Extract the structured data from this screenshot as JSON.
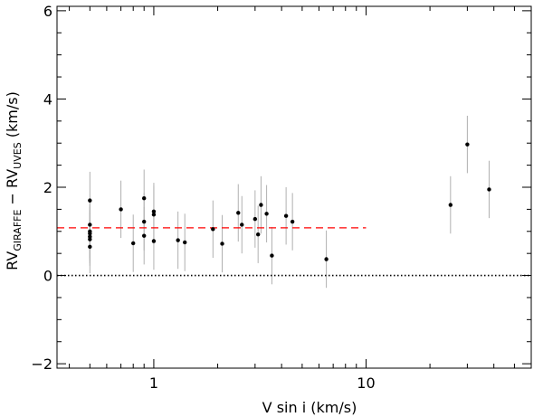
{
  "chart_data": {
    "type": "scatter",
    "x_scale": "log",
    "xlim": [
      0.35,
      60
    ],
    "ylim": [
      -2.1,
      6.1
    ],
    "xlabel": "V sin i (km/s)",
    "ylabel": {
      "main1": "RV",
      "sub1": "GIRAFFE",
      "sep": " − RV",
      "sub2": "UVES",
      "unit": " (km/s)"
    },
    "x_ticks_major": [
      1,
      10
    ],
    "x_tick_labels": [
      "1",
      "10"
    ],
    "x_ticks_minor": [
      0.4,
      0.5,
      0.6,
      0.7,
      0.8,
      0.9,
      2,
      3,
      4,
      5,
      6,
      7,
      8,
      9,
      20,
      30,
      40,
      50
    ],
    "y_ticks_major": [
      -2,
      0,
      2,
      4,
      6
    ],
    "y_tick_labels": [
      "−2",
      "0",
      "2",
      "4",
      "6"
    ],
    "y_ticks_minor": [
      -1.5,
      -1,
      -0.5,
      0.5,
      1,
      1.5,
      2.5,
      3,
      3.5,
      4.5,
      5,
      5.5
    ],
    "points": [
      {
        "x": 0.5,
        "y": 1.7,
        "err": 0.65
      },
      {
        "x": 0.5,
        "y": 1.15,
        "err": 0.6
      },
      {
        "x": 0.5,
        "y": 1.0,
        "err": 0.6
      },
      {
        "x": 0.5,
        "y": 0.95,
        "err": 0.6
      },
      {
        "x": 0.5,
        "y": 0.88,
        "err": 0.6
      },
      {
        "x": 0.5,
        "y": 0.82,
        "err": 0.6
      },
      {
        "x": 0.5,
        "y": 0.65,
        "err": 0.6
      },
      {
        "x": 0.7,
        "y": 1.5,
        "err": 0.65
      },
      {
        "x": 0.8,
        "y": 0.73,
        "err": 0.65
      },
      {
        "x": 0.9,
        "y": 1.75,
        "err": 0.65
      },
      {
        "x": 0.9,
        "y": 1.22,
        "err": 0.65
      },
      {
        "x": 0.9,
        "y": 0.9,
        "err": 0.65
      },
      {
        "x": 1.0,
        "y": 1.45,
        "err": 0.65
      },
      {
        "x": 1.0,
        "y": 1.38,
        "err": 0.65
      },
      {
        "x": 1.0,
        "y": 0.78,
        "err": 0.65
      },
      {
        "x": 1.3,
        "y": 0.8,
        "err": 0.65
      },
      {
        "x": 1.4,
        "y": 0.75,
        "err": 0.65
      },
      {
        "x": 1.9,
        "y": 1.05,
        "err": 0.65
      },
      {
        "x": 2.1,
        "y": 0.72,
        "err": 0.65
      },
      {
        "x": 2.5,
        "y": 1.42,
        "err": 0.65
      },
      {
        "x": 2.6,
        "y": 1.15,
        "err": 0.65
      },
      {
        "x": 3.0,
        "y": 1.28,
        "err": 0.65
      },
      {
        "x": 3.1,
        "y": 0.93,
        "err": 0.65
      },
      {
        "x": 3.2,
        "y": 1.6,
        "err": 0.65
      },
      {
        "x": 3.4,
        "y": 1.4,
        "err": 0.65
      },
      {
        "x": 3.6,
        "y": 0.45,
        "err": 0.65
      },
      {
        "x": 4.2,
        "y": 1.35,
        "err": 0.65
      },
      {
        "x": 4.5,
        "y": 1.22,
        "err": 0.65
      },
      {
        "x": 6.5,
        "y": 0.37,
        "err": 0.65
      },
      {
        "x": 25,
        "y": 1.6,
        "err": 0.65
      },
      {
        "x": 30,
        "y": 2.97,
        "err": 0.65
      },
      {
        "x": 38,
        "y": 1.95,
        "err": 0.65
      }
    ],
    "mean_line": {
      "y": 1.08,
      "x_from": 0.35,
      "x_to": 10,
      "color": "#ff0000",
      "style": "dashed"
    },
    "zero_line": {
      "y": 0,
      "color": "#000000",
      "style": "dotted"
    },
    "colors": {
      "points": "#000000",
      "errorbars": "#b0b0b0",
      "axes": "#000000"
    }
  }
}
